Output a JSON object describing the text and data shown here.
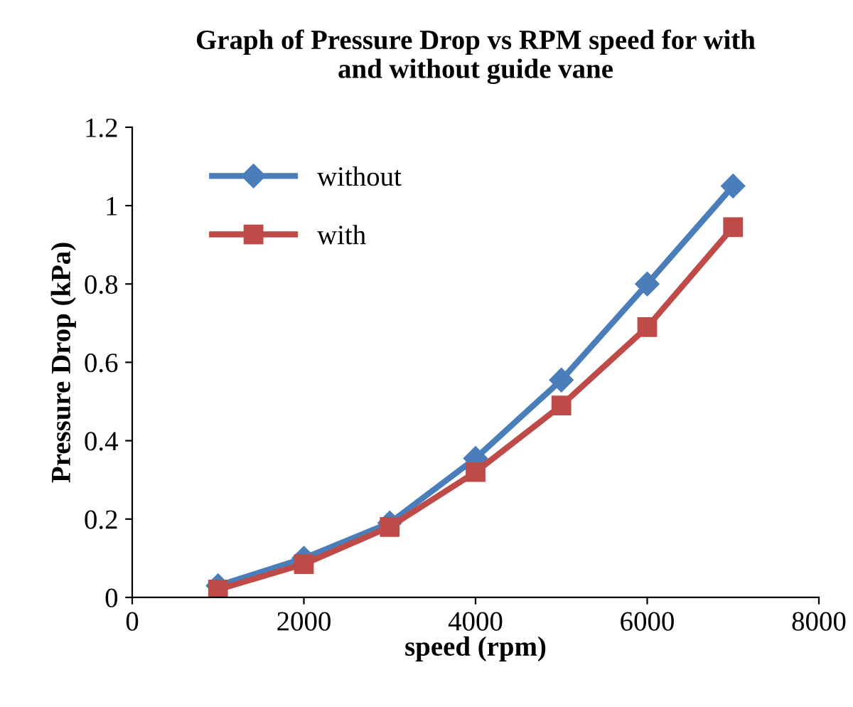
{
  "chart_data": {
    "type": "line",
    "title": "Graph of Pressure Drop vs RPM speed for with\nand without guide vane",
    "xlabel": "speed (rpm)",
    "ylabel": "Pressure Drop (kPa)",
    "x": [
      1000,
      2000,
      3000,
      4000,
      5000,
      6000,
      7000
    ],
    "series": [
      {
        "name": "without",
        "color": "#4a7ebb",
        "marker": "diamond",
        "values": [
          0.03,
          0.1,
          0.19,
          0.355,
          0.555,
          0.8,
          1.05
        ]
      },
      {
        "name": "with",
        "color": "#be4b48",
        "marker": "square",
        "values": [
          0.02,
          0.085,
          0.18,
          0.32,
          0.49,
          0.69,
          0.945
        ]
      }
    ],
    "xlim": [
      0,
      8000
    ],
    "xticks": [
      0,
      2000,
      4000,
      6000,
      8000
    ],
    "ylim": [
      0,
      1.2
    ],
    "yticks": [
      0,
      0.2,
      0.4,
      0.6,
      0.8,
      1,
      1.2
    ],
    "grid": false,
    "legend": "top left",
    "line_style": "solid"
  }
}
